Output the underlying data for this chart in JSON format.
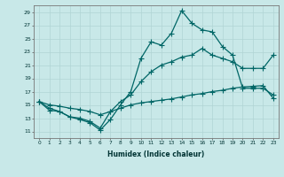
{
  "xlabel": "Humidex (Indice chaleur)",
  "ylabel": "",
  "background_color": "#c8e8e8",
  "grid_color": "#b0d4d4",
  "line_color": "#006666",
  "xlim": [
    -0.5,
    23.5
  ],
  "ylim": [
    10,
    30
  ],
  "xticks": [
    0,
    1,
    2,
    3,
    4,
    5,
    6,
    7,
    8,
    9,
    10,
    11,
    12,
    13,
    14,
    15,
    16,
    17,
    18,
    19,
    20,
    21,
    22,
    23
  ],
  "yticks": [
    11,
    13,
    15,
    17,
    19,
    21,
    23,
    25,
    27,
    29
  ],
  "series1_x": [
    0,
    1,
    2,
    3,
    4,
    5,
    6,
    7,
    8,
    9,
    10,
    11,
    12,
    13,
    14,
    15,
    16,
    17,
    18,
    19,
    20,
    21,
    22,
    23
  ],
  "series1_y": [
    15.5,
    14.2,
    14.0,
    13.2,
    12.8,
    12.3,
    11.2,
    12.8,
    15.0,
    17.0,
    22.0,
    24.5,
    24.0,
    25.8,
    29.2,
    27.3,
    26.3,
    26.0,
    23.8,
    22.5,
    17.5,
    17.5,
    17.5,
    16.5
  ],
  "series2_x": [
    0,
    1,
    2,
    3,
    4,
    5,
    6,
    7,
    8,
    9,
    10,
    11,
    12,
    13,
    14,
    15,
    16,
    17,
    18,
    19,
    20,
    21,
    22,
    23
  ],
  "series2_y": [
    15.5,
    14.5,
    14.0,
    13.2,
    13.0,
    12.5,
    11.5,
    14.0,
    15.5,
    16.5,
    18.5,
    20.0,
    21.0,
    21.5,
    22.2,
    22.5,
    23.5,
    22.5,
    22.0,
    21.5,
    20.5,
    20.5,
    20.5,
    22.5
  ],
  "series3_x": [
    0,
    1,
    2,
    3,
    4,
    5,
    6,
    7,
    8,
    9,
    10,
    11,
    12,
    13,
    14,
    15,
    16,
    17,
    18,
    19,
    20,
    21,
    22,
    23
  ],
  "series3_y": [
    15.5,
    15.0,
    14.8,
    14.5,
    14.3,
    14.0,
    13.5,
    14.0,
    14.5,
    15.0,
    15.3,
    15.5,
    15.7,
    15.9,
    16.2,
    16.5,
    16.7,
    17.0,
    17.2,
    17.5,
    17.7,
    17.8,
    17.9,
    16.0
  ]
}
